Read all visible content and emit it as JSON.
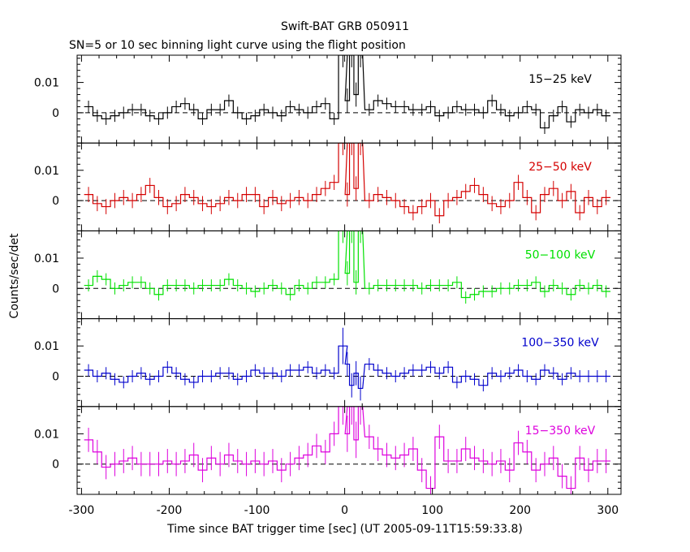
{
  "chart_data": {
    "type": "line",
    "title": "Swift-BAT GRB 050911",
    "subtitle": "SN=5 or 10 sec binning light curve using the flight position",
    "xlabel": "Time since BAT trigger time [sec] (UT 2005-09-11T15:59:33.8)",
    "ylabel": "Counts/sec/det",
    "xlim": [
      -305,
      315
    ],
    "ylim": [
      -0.01,
      0.019
    ],
    "grid": false,
    "x_ticks": [
      "-300",
      "-200",
      "-100",
      "0",
      "100",
      "200",
      "300"
    ],
    "y_ticks": [
      "0",
      "0.01"
    ],
    "bin_width_sec": 10,
    "panels": [
      {
        "name": "15-25 keV",
        "label": "15−25 keV",
        "color": "#000000",
        "x": [
          -292,
          -282,
          -272,
          -262,
          -252,
          -242,
          -232,
          -222,
          -212,
          -202,
          -192,
          -182,
          -172,
          -162,
          -152,
          -142,
          -132,
          -122,
          -112,
          -102,
          -92,
          -82,
          -72,
          -62,
          -52,
          -42,
          -32,
          -22,
          -12,
          -2,
          3,
          8,
          13,
          18,
          28,
          38,
          48,
          58,
          68,
          78,
          88,
          98,
          108,
          118,
          128,
          138,
          148,
          158,
          168,
          178,
          188,
          198,
          208,
          218,
          228,
          238,
          248,
          258,
          268,
          278,
          288,
          298
        ],
        "values": [
          0.002,
          -0.001,
          -0.002,
          -0.001,
          0.0,
          0.001,
          0.001,
          -0.001,
          -0.002,
          0.0,
          0.002,
          0.003,
          0.001,
          -0.002,
          0.001,
          0.001,
          0.004,
          0.0,
          -0.002,
          -0.001,
          0.001,
          0.0,
          -0.001,
          0.002,
          0.001,
          0.0,
          0.002,
          0.003,
          -0.002,
          0.019,
          0.004,
          0.019,
          0.006,
          0.019,
          0.001,
          0.004,
          0.003,
          0.002,
          0.002,
          0.001,
          0.001,
          0.002,
          -0.001,
          0.0,
          0.002,
          0.001,
          0.001,
          0.0,
          0.004,
          0.001,
          -0.001,
          0.0,
          0.002,
          0.001,
          -0.005,
          -0.001,
          0.002,
          -0.003,
          0.001,
          0.0,
          0.001,
          -0.001
        ],
        "errors": [
          0.002,
          0.002,
          0.002,
          0.002,
          0.002,
          0.002,
          0.002,
          0.002,
          0.002,
          0.002,
          0.002,
          0.002,
          0.002,
          0.002,
          0.002,
          0.002,
          0.002,
          0.002,
          0.002,
          0.002,
          0.002,
          0.002,
          0.002,
          0.002,
          0.002,
          0.002,
          0.002,
          0.002,
          0.002,
          0.004,
          0.004,
          0.004,
          0.004,
          0.004,
          0.002,
          0.002,
          0.002,
          0.002,
          0.002,
          0.002,
          0.002,
          0.002,
          0.002,
          0.002,
          0.002,
          0.002,
          0.002,
          0.002,
          0.002,
          0.002,
          0.002,
          0.002,
          0.002,
          0.002,
          0.002,
          0.002,
          0.002,
          0.002,
          0.002,
          0.002,
          0.002,
          0.002
        ]
      },
      {
        "name": "25-50 keV",
        "label": "25−50 keV",
        "color": "#d40000",
        "x": [
          -292,
          -282,
          -272,
          -262,
          -252,
          -242,
          -232,
          -222,
          -212,
          -202,
          -192,
          -182,
          -172,
          -162,
          -152,
          -142,
          -132,
          -122,
          -112,
          -102,
          -92,
          -82,
          -72,
          -62,
          -52,
          -42,
          -32,
          -22,
          -12,
          -2,
          3,
          8,
          13,
          18,
          28,
          38,
          48,
          58,
          68,
          78,
          88,
          98,
          108,
          118,
          128,
          138,
          148,
          158,
          168,
          178,
          188,
          198,
          208,
          218,
          228,
          238,
          248,
          258,
          268,
          278,
          288,
          298
        ],
        "values": [
          0.002,
          -0.001,
          -0.002,
          0.0,
          0.001,
          0.0,
          0.002,
          0.005,
          0.001,
          -0.002,
          -0.001,
          0.002,
          0.001,
          -0.001,
          -0.002,
          -0.001,
          0.001,
          0.0,
          0.002,
          0.002,
          -0.002,
          0.001,
          -0.001,
          0.0,
          0.001,
          0.0,
          0.002,
          0.004,
          0.006,
          0.019,
          0.002,
          0.019,
          0.004,
          0.019,
          0.0,
          0.002,
          0.001,
          0.0,
          -0.002,
          -0.004,
          -0.002,
          0.0,
          -0.005,
          0.0,
          0.001,
          0.003,
          0.005,
          0.002,
          -0.001,
          -0.002,
          0.0,
          0.006,
          0.001,
          -0.004,
          0.002,
          0.004,
          0.0,
          0.003,
          -0.004,
          0.001,
          -0.002,
          0.001
        ],
        "errors": [
          0.0025,
          0.0025,
          0.0025,
          0.0025,
          0.0025,
          0.0025,
          0.0025,
          0.0025,
          0.0025,
          0.0025,
          0.0025,
          0.0025,
          0.0025,
          0.0025,
          0.0025,
          0.0025,
          0.0025,
          0.0025,
          0.0025,
          0.0025,
          0.0025,
          0.0025,
          0.0025,
          0.0025,
          0.0025,
          0.0025,
          0.0025,
          0.0025,
          0.0025,
          0.004,
          0.004,
          0.004,
          0.004,
          0.004,
          0.0025,
          0.0025,
          0.0025,
          0.0025,
          0.0025,
          0.0025,
          0.0025,
          0.0025,
          0.0025,
          0.0025,
          0.0025,
          0.0025,
          0.0025,
          0.0025,
          0.0025,
          0.0025,
          0.0025,
          0.0025,
          0.0025,
          0.0025,
          0.0025,
          0.0025,
          0.0025,
          0.0025,
          0.0025,
          0.0025,
          0.0025,
          0.0025
        ]
      },
      {
        "name": "50-100 keV",
        "label": "50−100 keV",
        "color": "#00e000",
        "x": [
          -292,
          -282,
          -272,
          -262,
          -252,
          -242,
          -232,
          -222,
          -212,
          -202,
          -192,
          -182,
          -172,
          -162,
          -152,
          -142,
          -132,
          -122,
          -112,
          -102,
          -92,
          -82,
          -72,
          -62,
          -52,
          -42,
          -32,
          -22,
          -12,
          -2,
          3,
          8,
          13,
          18,
          28,
          38,
          48,
          58,
          68,
          78,
          88,
          98,
          108,
          118,
          128,
          138,
          148,
          158,
          168,
          178,
          188,
          198,
          208,
          218,
          228,
          238,
          248,
          258,
          268,
          278,
          288,
          298
        ],
        "values": [
          0.001,
          0.004,
          0.003,
          0.0,
          0.001,
          0.002,
          0.002,
          0.0,
          -0.002,
          0.001,
          0.001,
          0.001,
          0.0,
          0.001,
          0.001,
          0.001,
          0.003,
          0.001,
          0.0,
          -0.001,
          0.0,
          0.001,
          0.0,
          -0.002,
          0.001,
          0.0,
          0.002,
          0.002,
          0.003,
          0.019,
          0.005,
          0.019,
          0.002,
          0.019,
          0.0,
          0.001,
          0.001,
          0.001,
          0.001,
          0.001,
          0.0,
          0.001,
          0.001,
          0.001,
          0.002,
          -0.003,
          -0.002,
          -0.001,
          -0.001,
          0.0,
          0.0,
          0.001,
          0.001,
          0.002,
          -0.001,
          0.001,
          0.0,
          -0.002,
          0.001,
          0.0,
          0.001,
          -0.001
        ],
        "errors": [
          0.002,
          0.002,
          0.002,
          0.002,
          0.002,
          0.002,
          0.002,
          0.002,
          0.002,
          0.002,
          0.002,
          0.002,
          0.002,
          0.002,
          0.002,
          0.002,
          0.002,
          0.002,
          0.002,
          0.002,
          0.002,
          0.002,
          0.002,
          0.002,
          0.002,
          0.002,
          0.002,
          0.002,
          0.002,
          0.004,
          0.004,
          0.004,
          0.004,
          0.004,
          0.002,
          0.002,
          0.002,
          0.002,
          0.002,
          0.002,
          0.002,
          0.002,
          0.002,
          0.002,
          0.002,
          0.002,
          0.002,
          0.002,
          0.002,
          0.002,
          0.002,
          0.002,
          0.002,
          0.002,
          0.002,
          0.002,
          0.002,
          0.002,
          0.002,
          0.002,
          0.002,
          0.002
        ]
      },
      {
        "name": "100-350 keV",
        "label": "100−350 keV",
        "color": "#0000cc",
        "x": [
          -292,
          -282,
          -272,
          -262,
          -252,
          -242,
          -232,
          -222,
          -212,
          -202,
          -192,
          -182,
          -172,
          -162,
          -152,
          -142,
          -132,
          -122,
          -112,
          -102,
          -92,
          -82,
          -72,
          -62,
          -52,
          -42,
          -32,
          -22,
          -12,
          -2,
          3,
          8,
          13,
          18,
          28,
          38,
          48,
          58,
          68,
          78,
          88,
          98,
          108,
          118,
          128,
          138,
          148,
          158,
          168,
          178,
          188,
          198,
          208,
          218,
          228,
          238,
          248,
          258,
          268,
          278,
          288,
          298
        ],
        "values": [
          0.002,
          0.0,
          0.001,
          -0.001,
          -0.002,
          0.0,
          0.001,
          -0.001,
          0.0,
          0.003,
          0.001,
          -0.001,
          -0.002,
          0.0,
          0.0,
          0.001,
          0.001,
          -0.001,
          0.0,
          0.002,
          0.001,
          0.001,
          0.0,
          0.002,
          0.002,
          0.003,
          0.001,
          0.002,
          0.001,
          0.01,
          0.004,
          -0.003,
          0.001,
          -0.004,
          0.004,
          0.002,
          0.001,
          0.0,
          0.001,
          0.002,
          0.002,
          0.003,
          0.001,
          0.003,
          -0.002,
          0.0,
          -0.001,
          -0.003,
          0.001,
          0.0,
          0.001,
          0.002,
          0.0,
          -0.001,
          0.002,
          0.001,
          -0.001,
          0.001,
          0.0,
          0.0,
          0.0,
          0.0
        ],
        "errors": [
          0.002,
          0.002,
          0.002,
          0.002,
          0.002,
          0.002,
          0.002,
          0.002,
          0.002,
          0.002,
          0.002,
          0.002,
          0.002,
          0.002,
          0.002,
          0.002,
          0.002,
          0.002,
          0.002,
          0.002,
          0.002,
          0.002,
          0.002,
          0.002,
          0.002,
          0.002,
          0.002,
          0.002,
          0.002,
          0.006,
          0.004,
          0.004,
          0.004,
          0.004,
          0.002,
          0.002,
          0.002,
          0.002,
          0.002,
          0.002,
          0.002,
          0.002,
          0.002,
          0.002,
          0.002,
          0.002,
          0.002,
          0.002,
          0.002,
          0.002,
          0.002,
          0.002,
          0.002,
          0.002,
          0.002,
          0.002,
          0.002,
          0.002,
          0.002,
          0.002,
          0.002,
          0.002
        ]
      },
      {
        "name": "15-350 keV",
        "label": "15−350 keV",
        "color": "#dd00dd",
        "x": [
          -292,
          -282,
          -272,
          -262,
          -252,
          -242,
          -232,
          -222,
          -212,
          -202,
          -192,
          -182,
          -172,
          -162,
          -152,
          -142,
          -132,
          -122,
          -112,
          -102,
          -92,
          -82,
          -72,
          -62,
          -52,
          -42,
          -32,
          -22,
          -12,
          -2,
          3,
          8,
          13,
          18,
          28,
          38,
          48,
          58,
          68,
          78,
          88,
          98,
          108,
          118,
          128,
          138,
          148,
          158,
          168,
          178,
          188,
          198,
          208,
          218,
          228,
          238,
          248,
          258,
          268,
          278,
          288,
          298
        ],
        "values": [
          0.008,
          0.004,
          -0.001,
          0.0,
          0.001,
          0.002,
          0.0,
          0.0,
          0.0,
          0.001,
          0.0,
          0.001,
          0.003,
          -0.002,
          0.002,
          0.0,
          0.003,
          0.001,
          0.0,
          0.001,
          0.0,
          0.001,
          -0.002,
          0.0,
          0.002,
          0.003,
          0.006,
          0.004,
          0.01,
          0.019,
          0.01,
          0.019,
          0.008,
          0.019,
          0.009,
          0.005,
          0.003,
          0.002,
          0.003,
          0.005,
          -0.002,
          -0.008,
          0.009,
          0.001,
          0.001,
          0.005,
          0.002,
          0.001,
          0.0,
          0.001,
          -0.002,
          0.007,
          0.004,
          -0.002,
          0.0,
          0.002,
          -0.004,
          -0.008,
          0.002,
          -0.002,
          0.001,
          0.001
        ],
        "errors": [
          0.004,
          0.004,
          0.004,
          0.004,
          0.004,
          0.004,
          0.004,
          0.004,
          0.004,
          0.004,
          0.004,
          0.004,
          0.004,
          0.004,
          0.004,
          0.004,
          0.004,
          0.004,
          0.004,
          0.004,
          0.004,
          0.004,
          0.004,
          0.004,
          0.004,
          0.004,
          0.004,
          0.004,
          0.004,
          0.006,
          0.006,
          0.006,
          0.006,
          0.006,
          0.004,
          0.004,
          0.004,
          0.004,
          0.004,
          0.004,
          0.004,
          0.004,
          0.004,
          0.004,
          0.004,
          0.004,
          0.004,
          0.004,
          0.004,
          0.004,
          0.004,
          0.004,
          0.004,
          0.004,
          0.004,
          0.004,
          0.004,
          0.004,
          0.004,
          0.004,
          0.004,
          0.004
        ]
      }
    ]
  }
}
